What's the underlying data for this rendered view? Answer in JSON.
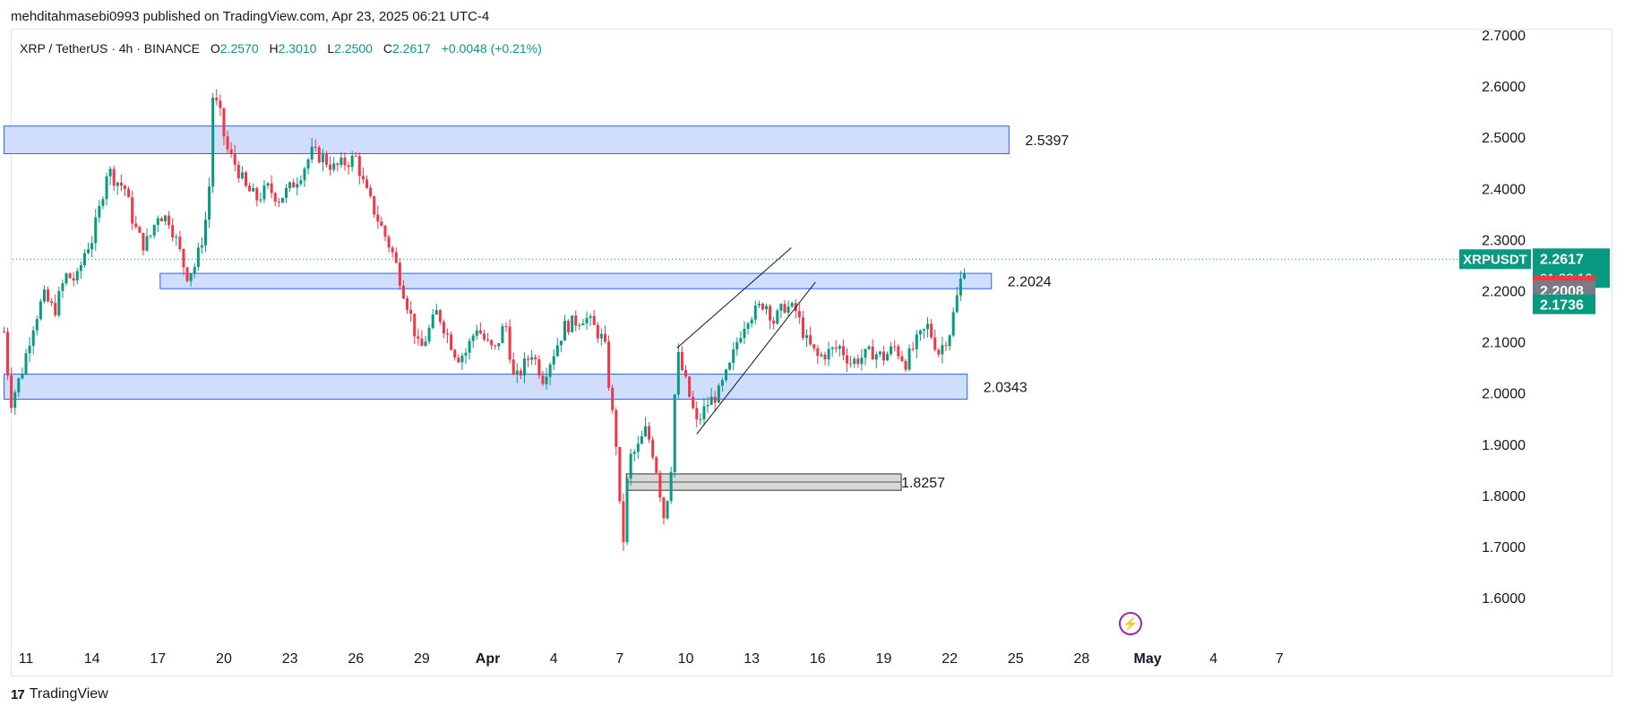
{
  "publisher_line": "mehditahmasebi0993 published on TradingView.com, Apr 23, 2025 06:21 UTC-4",
  "legend": {
    "symbol": "XRP / TetherUS · 4h · BINANCE",
    "o_label": "O",
    "o_value": "2.2570",
    "h_label": "H",
    "h_value": "2.3010",
    "l_label": "L",
    "l_value": "2.2500",
    "c_label": "C",
    "c_value": "2.2617",
    "change": "+0.0048 (+0.21%)"
  },
  "footer": {
    "logo_mark": "17",
    "brand": "TradingView"
  },
  "colors": {
    "up": "#089981",
    "down": "#f23645",
    "zone_fill": "#d1ddfd",
    "zone_border": "#2962ff",
    "gray_zone": "#d9d9d9"
  },
  "chart_data": {
    "type": "candlestick",
    "symbol": "XRPUSDT",
    "ylim": [
      1.55,
      2.72
    ],
    "y_ticks": [
      "2.7000",
      "2.6000",
      "2.5000",
      "2.4000",
      "2.3000",
      "2.2000",
      "2.1000",
      "2.0000",
      "1.9000",
      "1.8000",
      "1.7000",
      "1.6000"
    ],
    "x_ticks": [
      {
        "label": "11",
        "day": 11
      },
      {
        "label": "14",
        "day": 14
      },
      {
        "label": "17",
        "day": 17
      },
      {
        "label": "20",
        "day": 20
      },
      {
        "label": "23",
        "day": 23
      },
      {
        "label": "26",
        "day": 26
      },
      {
        "label": "29",
        "day": 29
      },
      {
        "label": "Apr",
        "day": 32
      },
      {
        "label": "4",
        "day": 35
      },
      {
        "label": "7",
        "day": 38
      },
      {
        "label": "10",
        "day": 41
      },
      {
        "label": "13",
        "day": 44
      },
      {
        "label": "16",
        "day": 47
      },
      {
        "label": "19",
        "day": 50
      },
      {
        "label": "22",
        "day": 53
      },
      {
        "label": "25",
        "day": 56
      },
      {
        "label": "28",
        "day": 59
      },
      {
        "label": "May",
        "day": 62
      },
      {
        "label": "4",
        "day": 65
      },
      {
        "label": "7",
        "day": 68
      }
    ],
    "zones": [
      {
        "label": "2.5397",
        "low": 2.468,
        "high": 2.522,
        "from_day": 10.0,
        "to_day": 55.7,
        "style": "blue"
      },
      {
        "label": "2.2024",
        "low": 2.204,
        "high": 2.234,
        "from_day": 17.1,
        "to_day": 54.9,
        "style": "blue"
      },
      {
        "label": "2.0343",
        "low": 1.988,
        "high": 2.037,
        "from_day": 10.0,
        "to_day": 53.8,
        "style": "blue"
      },
      {
        "label": "1.8257",
        "low": 1.81,
        "high": 1.842,
        "from_day": 38.3,
        "to_day": 50.8,
        "style": "gray"
      }
    ],
    "trendlines": [
      {
        "from": [
          40.6,
          2.088
        ],
        "to": [
          45.8,
          2.284
        ]
      },
      {
        "from": [
          41.5,
          1.92
        ],
        "to": [
          46.9,
          2.217
        ]
      }
    ],
    "last_price": "2.2617",
    "countdown": "01:38:16",
    "price_tags": [
      {
        "value": "2.2100",
        "color": "#f23645"
      },
      {
        "value": "2.2008",
        "color": "#787b86"
      },
      {
        "value": "2.1736",
        "color": "#089981"
      }
    ],
    "path": [
      [
        10.0,
        2.12
      ],
      [
        10.3,
        1.98
      ],
      [
        10.8,
        2.04
      ],
      [
        11.3,
        2.13
      ],
      [
        11.8,
        2.19
      ],
      [
        12.3,
        2.16
      ],
      [
        12.8,
        2.23
      ],
      [
        13.3,
        2.22
      ],
      [
        13.7,
        2.28
      ],
      [
        14.0,
        2.3
      ],
      [
        14.4,
        2.37
      ],
      [
        14.7,
        2.44
      ],
      [
        15.0,
        2.42
      ],
      [
        15.5,
        2.4
      ],
      [
        15.9,
        2.33
      ],
      [
        16.3,
        2.29
      ],
      [
        16.6,
        2.3
      ],
      [
        17.0,
        2.35
      ],
      [
        17.5,
        2.34
      ],
      [
        17.9,
        2.29
      ],
      [
        18.3,
        2.23
      ],
      [
        18.7,
        2.25
      ],
      [
        19.0,
        2.3
      ],
      [
        19.3,
        2.37
      ],
      [
        19.5,
        2.58
      ],
      [
        19.8,
        2.55
      ],
      [
        20.1,
        2.48
      ],
      [
        20.6,
        2.44
      ],
      [
        21.0,
        2.4
      ],
      [
        21.5,
        2.38
      ],
      [
        22.0,
        2.4
      ],
      [
        22.5,
        2.38
      ],
      [
        23.0,
        2.4
      ],
      [
        23.5,
        2.43
      ],
      [
        24.0,
        2.47
      ],
      [
        24.5,
        2.46
      ],
      [
        25.0,
        2.44
      ],
      [
        25.5,
        2.45
      ],
      [
        26.0,
        2.46
      ],
      [
        26.4,
        2.4
      ],
      [
        26.9,
        2.35
      ],
      [
        27.3,
        2.31
      ],
      [
        27.7,
        2.27
      ],
      [
        28.1,
        2.21
      ],
      [
        28.5,
        2.15
      ],
      [
        28.9,
        2.08
      ],
      [
        29.3,
        2.12
      ],
      [
        29.7,
        2.16
      ],
      [
        30.1,
        2.12
      ],
      [
        30.6,
        2.07
      ],
      [
        31.0,
        2.08
      ],
      [
        31.5,
        2.13
      ],
      [
        31.9,
        2.1
      ],
      [
        32.3,
        2.08
      ],
      [
        32.8,
        2.14
      ],
      [
        33.2,
        2.02
      ],
      [
        33.6,
        2.05
      ],
      [
        34.0,
        2.08
      ],
      [
        34.5,
        2.03
      ],
      [
        35.0,
        2.08
      ],
      [
        35.5,
        2.13
      ],
      [
        36.0,
        2.14
      ],
      [
        36.4,
        2.15
      ],
      [
        36.8,
        2.13
      ],
      [
        37.3,
        2.1
      ],
      [
        37.6,
        1.98
      ],
      [
        37.9,
        1.88
      ],
      [
        38.1,
        1.67
      ],
      [
        38.4,
        1.87
      ],
      [
        38.8,
        1.89
      ],
      [
        39.2,
        1.93
      ],
      [
        39.6,
        1.87
      ],
      [
        40.0,
        1.76
      ],
      [
        40.3,
        1.83
      ],
      [
        40.6,
        2.08
      ],
      [
        41.0,
        2.02
      ],
      [
        41.5,
        1.94
      ],
      [
        42.0,
        1.98
      ],
      [
        42.5,
        2.0
      ],
      [
        43.0,
        2.05
      ],
      [
        43.4,
        2.11
      ],
      [
        43.8,
        2.15
      ],
      [
        44.2,
        2.16
      ],
      [
        44.6,
        2.18
      ],
      [
        45.0,
        2.14
      ],
      [
        45.5,
        2.17
      ],
      [
        46.0,
        2.16
      ],
      [
        46.5,
        2.1
      ],
      [
        47.0,
        2.07
      ],
      [
        47.5,
        2.08
      ],
      [
        48.0,
        2.09
      ],
      [
        48.5,
        2.06
      ],
      [
        49.0,
        2.07
      ],
      [
        49.5,
        2.08
      ],
      [
        50.0,
        2.07
      ],
      [
        50.5,
        2.09
      ],
      [
        51.0,
        2.06
      ],
      [
        51.5,
        2.1
      ],
      [
        52.0,
        2.13
      ],
      [
        52.5,
        2.08
      ],
      [
        53.0,
        2.12
      ],
      [
        53.3,
        2.18
      ],
      [
        53.6,
        2.24
      ],
      [
        53.8,
        2.2617
      ]
    ]
  }
}
